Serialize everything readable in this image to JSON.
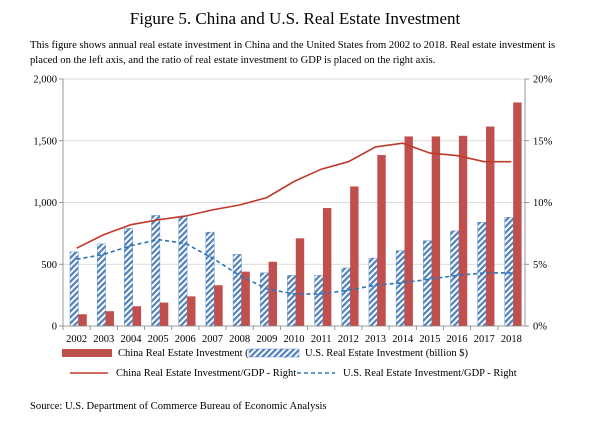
{
  "figure": {
    "title": "Figure 5. China and U.S. Real Estate Investment",
    "description": "This figure shows annual real estate investment in China and the United States from 2002 to 2018. Real estate investment is placed on the left axis, and the ratio of real estate investment to GDP is placed on the right axis.",
    "source": "Source: U.S. Department of Commerce Bureau of Economic Analysis"
  },
  "chart_data": {
    "type": "bar",
    "categories": [
      "2002",
      "2003",
      "2004",
      "2005",
      "2006",
      "2007",
      "2008",
      "2009",
      "2010",
      "2011",
      "2012",
      "2013",
      "2014",
      "2015",
      "2016",
      "2017",
      "2018"
    ],
    "y_left": {
      "ylim": [
        0,
        2000
      ],
      "ticks": [
        0,
        500,
        1000,
        1500,
        2000
      ],
      "tick_labels": [
        "0",
        "500",
        "1,000",
        "1,500",
        "2,000"
      ]
    },
    "y_right": {
      "ylim": [
        0,
        20
      ],
      "ticks": [
        0,
        5,
        10,
        15,
        20
      ],
      "tick_labels": [
        "0%",
        "5%",
        "10%",
        "15%",
        "20%"
      ]
    },
    "series": [
      {
        "name": "China Real Estate Investment (billion $)",
        "kind": "bar",
        "axis": "left",
        "color": "#c0504d",
        "values": [
          95,
          120,
          160,
          190,
          240,
          330,
          440,
          520,
          710,
          955,
          1130,
          1385,
          1535,
          1535,
          1540,
          1615,
          1810
        ]
      },
      {
        "name": "U.S. Real Estate Investment (billion $)",
        "kind": "bar",
        "axis": "left",
        "color": "#4f81bd",
        "pattern": "diagonal-hatch",
        "values": [
          600,
          665,
          790,
          895,
          890,
          760,
          580,
          430,
          410,
          410,
          470,
          550,
          610,
          690,
          770,
          840,
          880
        ]
      },
      {
        "name": "China Real Estate Investment/GDP - Right",
        "kind": "line",
        "axis": "right",
        "color": "#c0392b",
        "style": "solid",
        "values": [
          6.3,
          7.4,
          8.2,
          8.6,
          8.9,
          9.4,
          9.8,
          10.4,
          11.7,
          12.7,
          13.3,
          14.5,
          14.8,
          14.0,
          13.8,
          13.3,
          13.3
        ]
      },
      {
        "name": "U.S. Real Estate Investment/GDP - Right",
        "kind": "line",
        "axis": "right",
        "color": "#2e75b6",
        "style": "dashed",
        "values": [
          5.4,
          5.8,
          6.5,
          7.0,
          6.7,
          5.5,
          4.1,
          3.0,
          2.6,
          2.6,
          2.9,
          3.3,
          3.5,
          3.8,
          4.1,
          4.3,
          4.3
        ]
      }
    ],
    "grid": {
      "y": true,
      "x": false
    },
    "legend_placement": "bottom"
  }
}
